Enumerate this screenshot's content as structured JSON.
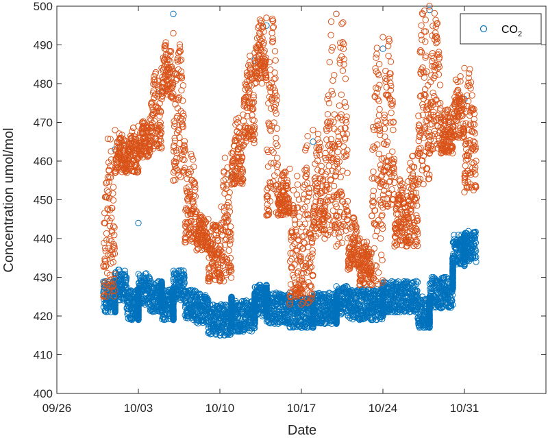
{
  "chart_data": {
    "type": "scatter",
    "xlabel": "Date",
    "ylabel": "Concentration umol/mol",
    "ylim": [
      400,
      500
    ],
    "yticks": [
      400,
      410,
      420,
      430,
      440,
      450,
      460,
      470,
      480,
      490,
      500
    ],
    "xlim": [
      "2016-09-26",
      "2016-11-07"
    ],
    "xticks": [
      {
        "date": "2016-09-26",
        "label": "09/26"
      },
      {
        "date": "2016-10-03",
        "label": "10/03"
      },
      {
        "date": "2016-10-10",
        "label": "10/10"
      },
      {
        "date": "2016-10-17",
        "label": "10/17"
      },
      {
        "date": "2016-10-24",
        "label": "10/24"
      },
      {
        "date": "2016-10-31",
        "label": "10/31"
      }
    ],
    "grid": false,
    "legend_position": "top-right",
    "legend": [
      {
        "text": "CO",
        "subscript": "2",
        "color": "#0072BD"
      }
    ],
    "series": [
      {
        "name": "CO2",
        "marker": "circle-open",
        "color": "#0072BD",
        "points": [
          [
            "2016-09-30",
            426
          ],
          [
            "2016-10-01",
            421
          ],
          [
            "2016-10-02",
            424
          ],
          [
            "2016-10-03",
            419
          ],
          [
            "2016-10-04",
            423
          ],
          [
            "2016-10-05",
            421
          ],
          [
            "2016-10-06",
            419
          ],
          [
            "2016-10-07",
            424
          ],
          [
            "2016-10-08",
            419
          ],
          [
            "2016-10-09",
            418
          ],
          [
            "2016-10-10",
            415
          ],
          [
            "2016-10-11",
            417
          ],
          [
            "2016-10-12",
            416
          ],
          [
            "2016-10-13",
            418
          ],
          [
            "2016-10-14",
            420
          ],
          [
            "2016-10-15",
            418
          ],
          [
            "2016-10-16",
            418
          ],
          [
            "2016-10-17",
            417
          ],
          [
            "2016-10-18",
            417
          ],
          [
            "2016-10-19",
            418
          ],
          [
            "2016-10-20",
            418
          ],
          [
            "2016-10-21",
            420
          ],
          [
            "2016-10-22",
            419
          ],
          [
            "2016-10-23",
            419
          ],
          [
            "2016-10-24",
            420
          ],
          [
            "2016-10-25",
            421
          ],
          [
            "2016-10-26",
            422
          ],
          [
            "2016-10-27",
            421
          ],
          [
            "2016-10-28",
            417
          ],
          [
            "2016-10-29",
            422
          ],
          [
            "2016-10-30",
            427
          ],
          [
            "2016-10-31",
            433
          ],
          [
            "2016-11-01",
            434
          ],
          [
            "2016-10-01",
            463
          ],
          [
            "2016-10-03",
            444
          ],
          [
            "2016-10-05",
            478
          ],
          [
            "2016-10-06",
            498
          ],
          [
            "2016-10-11",
            456
          ],
          [
            "2016-10-13",
            486
          ],
          [
            "2016-10-14",
            495
          ],
          [
            "2016-10-18",
            465
          ],
          [
            "2016-10-20",
            498
          ],
          [
            "2016-10-24",
            489
          ],
          [
            "2016-10-28",
            499
          ],
          [
            "2016-10-30",
            469
          ],
          [
            "2016-10-31",
            476
          ]
        ]
      },
      {
        "name": "",
        "marker": "circle-open",
        "color": "#D95319",
        "points": [
          [
            "2016-09-30",
            433
          ],
          [
            "2016-10-01",
            468
          ],
          [
            "2016-10-02",
            465
          ],
          [
            "2016-10-03",
            469
          ],
          [
            "2016-10-04",
            471
          ],
          [
            "2016-10-05",
            484
          ],
          [
            "2016-10-06",
            493
          ],
          [
            "2016-10-07",
            463
          ],
          [
            "2016-10-08",
            447
          ],
          [
            "2016-10-09",
            445
          ],
          [
            "2016-10-10",
            437
          ],
          [
            "2016-10-11",
            462
          ],
          [
            "2016-10-12",
            472
          ],
          [
            "2016-10-13",
            488
          ],
          [
            "2016-10-14",
            497
          ],
          [
            "2016-10-15",
            454
          ],
          [
            "2016-10-16",
            458
          ],
          [
            "2016-10-17",
            431
          ],
          [
            "2016-10-18",
            468
          ],
          [
            "2016-10-19",
            448
          ],
          [
            "2016-10-20",
            498
          ],
          [
            "2016-10-21",
            446
          ],
          [
            "2016-10-22",
            440
          ],
          [
            "2016-10-23",
            436
          ],
          [
            "2016-10-24",
            492
          ],
          [
            "2016-10-25",
            456
          ],
          [
            "2016-10-26",
            446
          ],
          [
            "2016-10-27",
            462
          ],
          [
            "2016-10-28",
            500
          ],
          [
            "2016-10-29",
            470
          ],
          [
            "2016-10-30",
            474
          ],
          [
            "2016-10-31",
            484
          ],
          [
            "2016-11-01",
            460
          ]
        ]
      }
    ]
  }
}
